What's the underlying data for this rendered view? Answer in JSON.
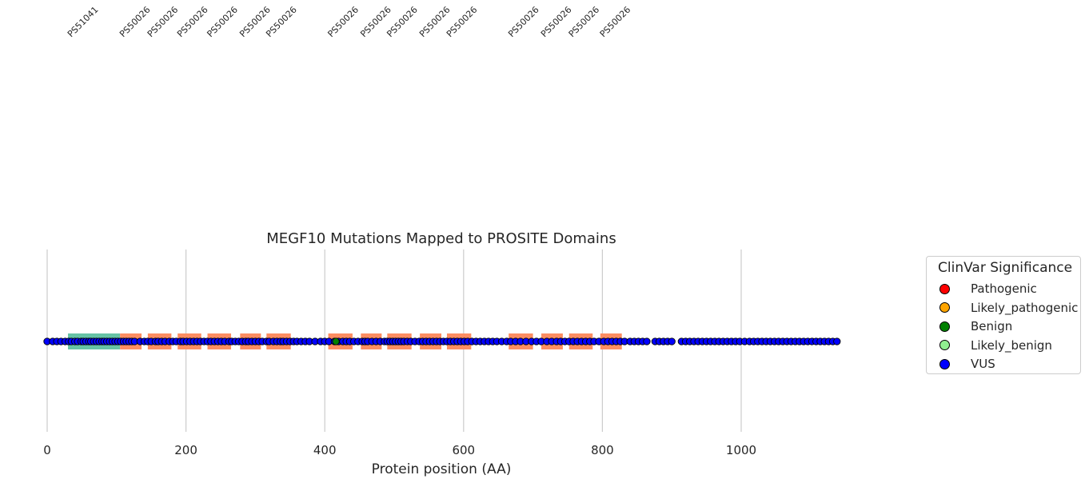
{
  "chart_data": {
    "type": "scatter",
    "title": "MEGF10 Mutations Mapped to PROSITE Domains",
    "xlabel": "Protein position (AA)",
    "ylabel": "",
    "xlim": [
      -8,
      1152
    ],
    "xticks": [
      0,
      200,
      400,
      600,
      800,
      1000
    ],
    "grid": "vertical",
    "legend": {
      "title": "ClinVar Significance",
      "placement": "outside-right",
      "entries": [
        {
          "label": "Pathogenic",
          "color": "#ff0000"
        },
        {
          "label": "Likely_pathogenic",
          "color": "#ffa500"
        },
        {
          "label": "Benign",
          "color": "#008000"
        },
        {
          "label": "Likely_benign",
          "color": "#90ee90"
        },
        {
          "label": "VUS",
          "color": "#0000ff"
        }
      ]
    },
    "domains": [
      {
        "id": "PS51041",
        "start": 30,
        "end": 105,
        "color": "#66c2a5"
      },
      {
        "id": "PS50026",
        "start": 105,
        "end": 136,
        "color": "#fc8d62"
      },
      {
        "id": "PS50026",
        "start": 145,
        "end": 179,
        "color": "#fc8d62"
      },
      {
        "id": "PS50026",
        "start": 188,
        "end": 222,
        "color": "#fc8d62"
      },
      {
        "id": "PS50026",
        "start": 231,
        "end": 265,
        "color": "#fc8d62"
      },
      {
        "id": "PS50026",
        "start": 278,
        "end": 308,
        "color": "#fc8d62"
      },
      {
        "id": "PS50026",
        "start": 316,
        "end": 351,
        "color": "#fc8d62"
      },
      {
        "id": "PS50026",
        "start": 405,
        "end": 440,
        "color": "#fc8d62"
      },
      {
        "id": "PS50026",
        "start": 452,
        "end": 482,
        "color": "#fc8d62"
      },
      {
        "id": "PS50026",
        "start": 490,
        "end": 525,
        "color": "#fc8d62"
      },
      {
        "id": "PS50026",
        "start": 537,
        "end": 568,
        "color": "#fc8d62"
      },
      {
        "id": "PS50026",
        "start": 576,
        "end": 611,
        "color": "#fc8d62"
      },
      {
        "id": "PS50026",
        "start": 665,
        "end": 700,
        "color": "#fc8d62"
      },
      {
        "id": "PS50026",
        "start": 712,
        "end": 743,
        "color": "#fc8d62"
      },
      {
        "id": "PS50026",
        "start": 752,
        "end": 786,
        "color": "#fc8d62"
      },
      {
        "id": "PS50026",
        "start": 797,
        "end": 828,
        "color": "#fc8d62"
      }
    ],
    "series": [
      {
        "name": "VUS",
        "color": "#0000ff",
        "x": [
          0,
          8,
          14,
          20,
          26,
          31,
          35,
          40,
          44,
          49,
          52,
          56,
          60,
          63,
          67,
          71,
          75,
          79,
          82,
          86,
          90,
          94,
          98,
          102,
          106,
          110,
          114,
          118,
          122,
          126,
          134,
          140,
          145,
          150,
          156,
          160,
          165,
          170,
          176,
          181,
          186,
          192,
          196,
          201,
          206,
          211,
          216,
          221,
          226,
          231,
          236,
          241,
          246,
          251,
          256,
          262,
          266,
          271,
          276,
          281,
          286,
          290,
          295,
          300,
          305,
          310,
          316,
          320,
          326,
          331,
          336,
          340,
          345,
          350,
          355,
          360,
          366,
          372,
          378,
          386,
          394,
          400,
          406,
          414,
          420,
          426,
          431,
          436,
          442,
          448,
          454,
          458,
          462,
          468,
          474,
          480,
          486,
          490,
          494,
          498,
          502,
          506,
          510,
          514,
          519,
          524,
          530,
          536,
          541,
          546,
          551,
          556,
          561,
          566,
          571,
          576,
          581,
          586,
          591,
          596,
          601,
          606,
          612,
          618,
          624,
          630,
          636,
          642,
          648,
          655,
          662,
          668,
          675,
          682,
          690,
          698,
          705,
          712,
          720,
          727,
          734,
          740,
          746,
          752,
          758,
          764,
          770,
          776,
          782,
          788,
          795,
          802,
          808,
          814,
          820,
          826,
          832,
          840,
          846,
          852,
          858,
          864,
          876,
          882,
          888,
          894,
          900,
          914,
          920,
          926,
          932,
          938,
          944,
          950,
          956,
          962,
          968,
          974,
          980,
          986,
          992,
          998,
          1005,
          1012,
          1018,
          1024,
          1030,
          1036,
          1042,
          1048,
          1054,
          1060,
          1066,
          1072,
          1078,
          1084,
          1090,
          1096,
          1102,
          1108,
          1114,
          1120,
          1126,
          1132,
          1138
        ],
        "y": 0
      },
      {
        "name": "Benign",
        "color": "#008000",
        "x": [
          416
        ],
        "y": 0
      }
    ]
  }
}
